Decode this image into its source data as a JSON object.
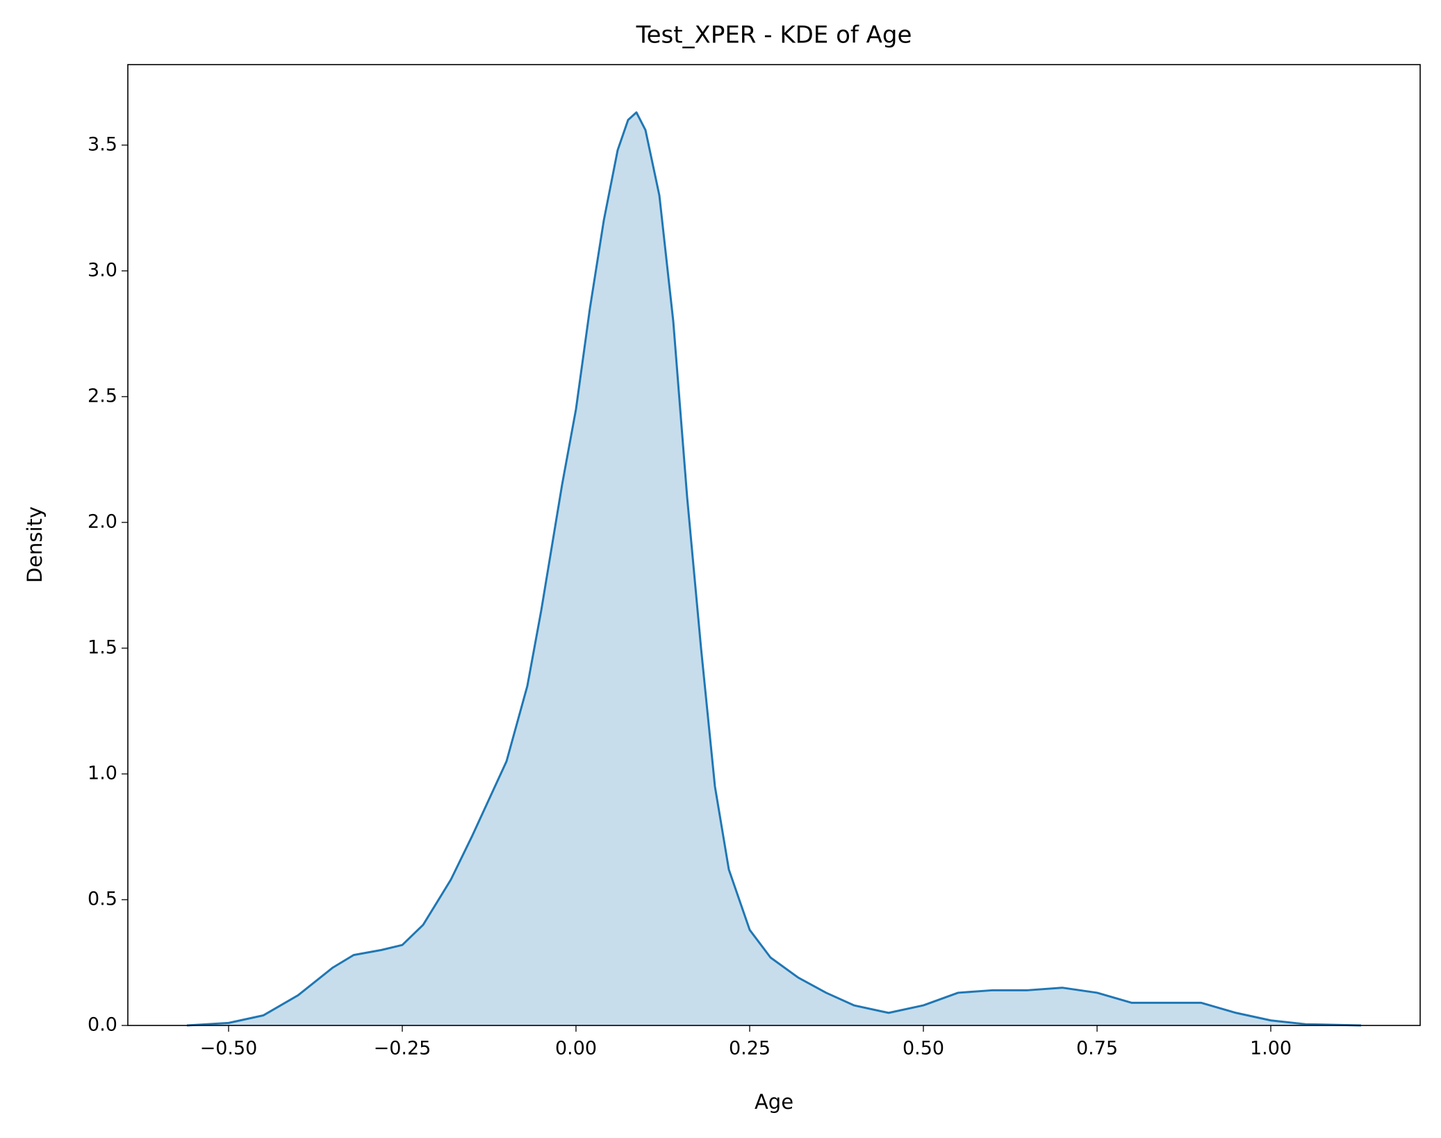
{
  "chart_data": {
    "type": "area",
    "title": "Test_XPER - KDE of Age",
    "x_label": "Age",
    "y_label": "Density",
    "color": "#1f77b4",
    "series": [
      {
        "name": "Age",
        "color": "#1f77b4",
        "x": [
          -0.56,
          -0.5,
          -0.45,
          -0.4,
          -0.35,
          -0.32,
          -0.28,
          -0.25,
          -0.22,
          -0.18,
          -0.15,
          -0.1,
          -0.07,
          -0.05,
          -0.02,
          0.0,
          0.02,
          0.04,
          0.06,
          0.075,
          0.087,
          0.1,
          0.12,
          0.14,
          0.16,
          0.18,
          0.2,
          0.22,
          0.25,
          0.28,
          0.32,
          0.36,
          0.4,
          0.45,
          0.5,
          0.55,
          0.6,
          0.65,
          0.7,
          0.75,
          0.8,
          0.85,
          0.9,
          0.95,
          1.0,
          1.05,
          1.13
        ],
        "values": [
          0,
          0.01,
          0.04,
          0.12,
          0.23,
          0.28,
          0.3,
          0.32,
          0.4,
          0.58,
          0.75,
          1.05,
          1.35,
          1.65,
          2.15,
          2.45,
          2.85,
          3.2,
          3.48,
          3.6,
          3.63,
          3.56,
          3.3,
          2.8,
          2.1,
          1.5,
          0.95,
          0.62,
          0.38,
          0.27,
          0.19,
          0.13,
          0.08,
          0.05,
          0.08,
          0.13,
          0.14,
          0.14,
          0.15,
          0.13,
          0.09,
          0.09,
          0.09,
          0.05,
          0.02,
          0.005,
          0
        ]
      }
    ],
    "xlim": [
      -0.645,
      1.215
    ],
    "xticks": [
      {
        "value": -0.5,
        "label": "−0.50"
      },
      {
        "value": -0.25,
        "label": "−0.25"
      },
      {
        "value": 0,
        "label": "0.00"
      },
      0.25,
      {
        "value": 0.5,
        "label": "0.50"
      },
      0.75,
      {
        "value": 1,
        "label": "1.00"
      }
    ],
    "ylim": [
      0,
      3.82
    ],
    "yticks": [
      {
        "value": 0,
        "label": "0.0"
      },
      0.5,
      {
        "value": 1,
        "label": "1.0"
      },
      1.5,
      {
        "value": 2,
        "label": "2.0"
      },
      2.5,
      {
        "value": 3,
        "label": "3.0"
      },
      3.5
    ],
    "grid": false
  }
}
